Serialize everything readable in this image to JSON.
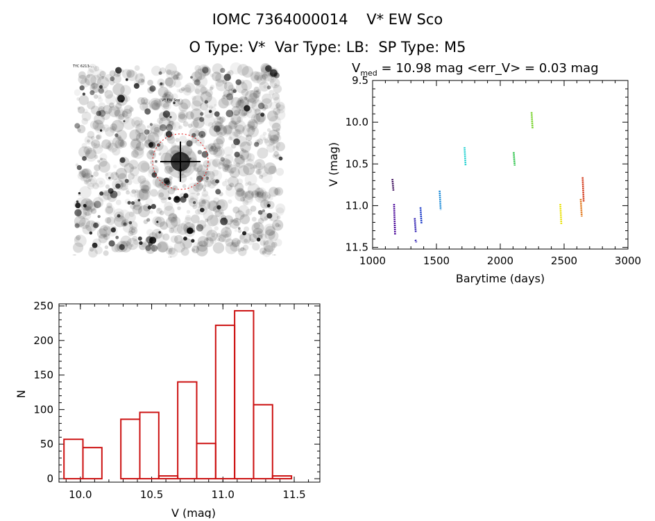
{
  "header": {
    "title": "IOMC 7364000014    V* EW Sco",
    "subtitle": "O Type: V*  Var Type: LB:  SP Type: M5"
  },
  "chart_data": [
    {
      "type": "scatter",
      "title_prefix": "V",
      "title_sub": "med",
      "title_rest": " = 10.98 mag <err_V> = 0.03 mag",
      "xlabel": "Barytime (days)",
      "ylabel": "V (mag)",
      "xlim": [
        1000,
        3000
      ],
      "ylim": [
        11.52,
        9.5
      ],
      "y_inverted": true,
      "xticks": [
        1000,
        1500,
        2000,
        2500,
        3000
      ],
      "xtick_labels": [
        "1000",
        "1500",
        "2000",
        "2500",
        "3000"
      ],
      "yticks": [
        9.5,
        10.0,
        10.5,
        11.0,
        11.5
      ],
      "ytick_labels": [
        "9.5",
        "10.0",
        "10.5",
        "11.0",
        "11.5"
      ],
      "segments": [
        {
          "x": 1155,
          "y_top": 10.68,
          "y_bottom": 10.82,
          "color": "#3a0a5a"
        },
        {
          "x": 1168,
          "y_top": 10.98,
          "y_bottom": 11.35,
          "color": "#4b0a9a"
        },
        {
          "x": 1330,
          "y_top": 11.15,
          "y_bottom": 11.32,
          "color": "#2a1ab0"
        },
        {
          "x": 1335,
          "y_top": 11.41,
          "y_bottom": 11.44,
          "color": "#2a1ab0"
        },
        {
          "x": 1375,
          "y_top": 11.02,
          "y_bottom": 11.22,
          "color": "#1a3ac8"
        },
        {
          "x": 1525,
          "y_top": 10.82,
          "y_bottom": 11.05,
          "color": "#1a8ad8"
        },
        {
          "x": 1720,
          "y_top": 10.3,
          "y_bottom": 10.52,
          "color": "#20d0d0"
        },
        {
          "x": 2105,
          "y_top": 10.36,
          "y_bottom": 10.52,
          "color": "#20c040"
        },
        {
          "x": 2245,
          "y_top": 9.88,
          "y_bottom": 10.08,
          "color": "#70d020"
        },
        {
          "x": 2470,
          "y_top": 10.98,
          "y_bottom": 11.22,
          "color": "#e8e000"
        },
        {
          "x": 2630,
          "y_top": 10.92,
          "y_bottom": 11.13,
          "color": "#e07010"
        },
        {
          "x": 2645,
          "y_top": 10.66,
          "y_bottom": 10.95,
          "color": "#d03010"
        }
      ]
    },
    {
      "type": "bar",
      "xlabel": "V (mag)",
      "ylabel": "N",
      "xlim": [
        9.85,
        11.68
      ],
      "ylim": [
        -5,
        253
      ],
      "xticks": [
        10.0,
        10.5,
        11.0,
        11.5
      ],
      "xtick_labels": [
        "10.0",
        "10.5",
        "11.0",
        "11.5"
      ],
      "yticks": [
        0,
        50,
        100,
        150,
        200,
        250
      ],
      "ytick_labels": [
        "0",
        "50",
        "100",
        "150",
        "200",
        "250"
      ],
      "bin_edges": [
        9.885,
        10.018,
        10.151,
        10.284,
        10.417,
        10.55,
        10.683,
        10.816,
        10.949,
        11.082,
        11.215,
        11.348,
        11.481
      ],
      "values": [
        57,
        45,
        0,
        86,
        96,
        4,
        140,
        51,
        222,
        243,
        107,
        4
      ],
      "bar_color": "#cc1111"
    }
  ],
  "image_panel": {
    "top_left_label": "TYC 6213-...",
    "marker_label": "V* EW Sco",
    "bottom_left_label": "...",
    "bottom_center_label": "...",
    "bottom_right_label": "..."
  }
}
